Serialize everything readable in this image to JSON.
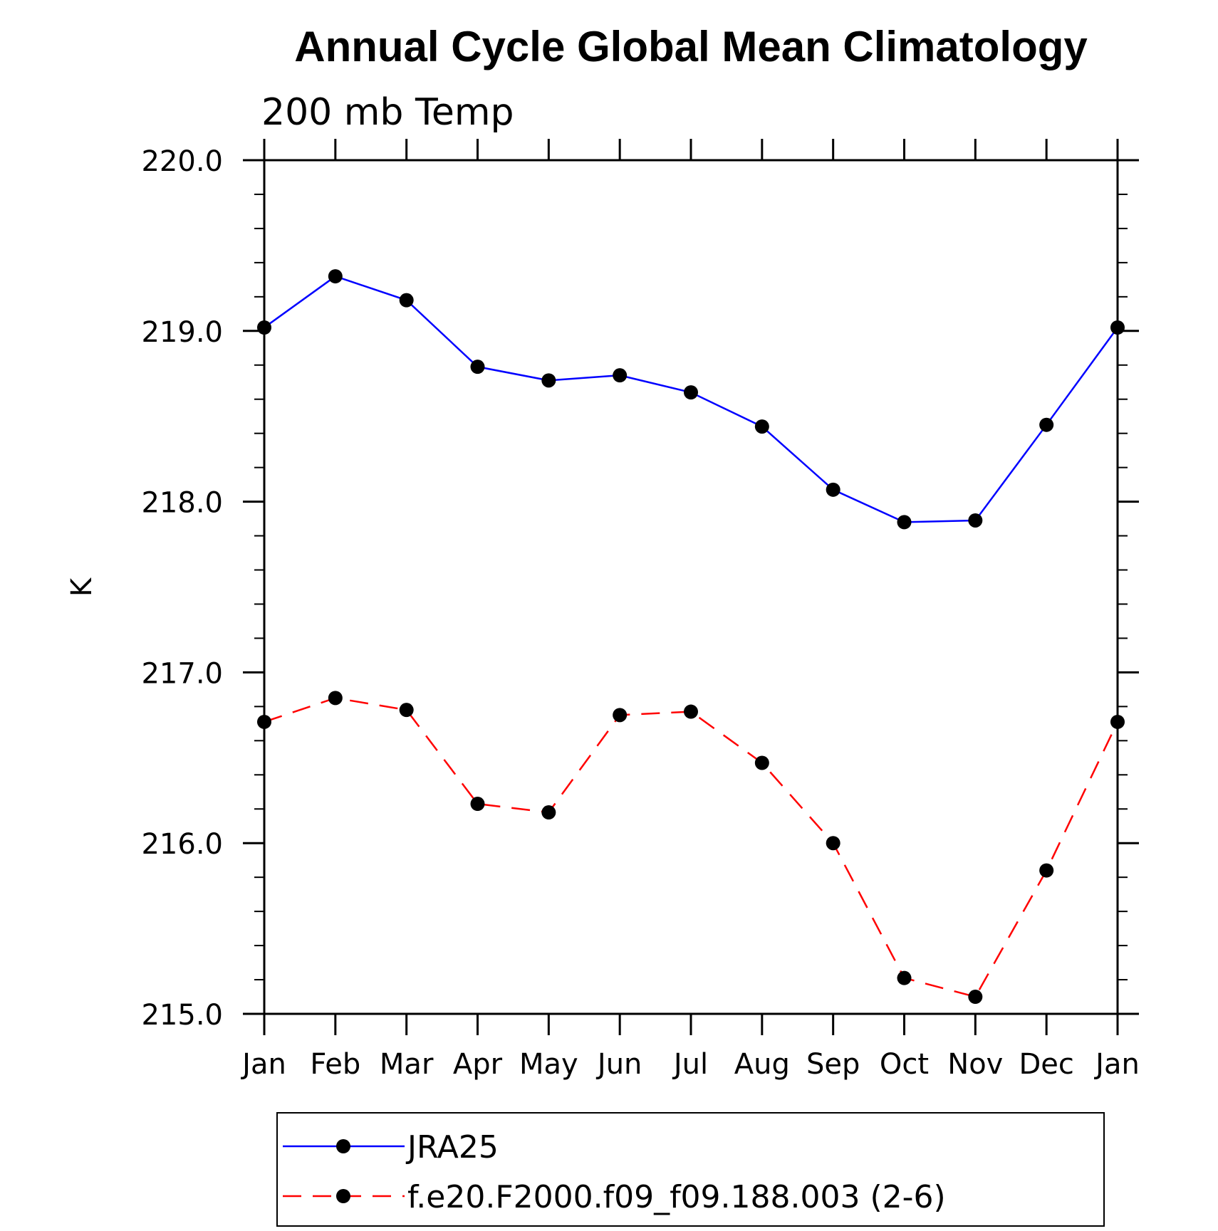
{
  "chart_data": {
    "type": "line",
    "title": "Annual Cycle Global Mean Climatology",
    "subtitle": "200 mb Temp",
    "ylabel": "K",
    "xlabel": "",
    "ylim": [
      215.0,
      220.0
    ],
    "y_major_ticks": [
      215.0,
      216.0,
      217.0,
      218.0,
      219.0,
      220.0
    ],
    "y_tick_labels": [
      "215.0",
      "216.0",
      "217.0",
      "218.0",
      "219.0",
      "220.0"
    ],
    "y_minor_step": 0.2,
    "categories": [
      "Jan",
      "Feb",
      "Mar",
      "Apr",
      "May",
      "Jun",
      "Jul",
      "Aug",
      "Sep",
      "Oct",
      "Nov",
      "Dec",
      "Jan"
    ],
    "grid": false,
    "legend_position": "bottom",
    "series": [
      {
        "name": "JRA25",
        "color": "#0000ff",
        "line_style": "solid",
        "marker": "filled-circle",
        "values": [
          219.02,
          219.32,
          219.18,
          218.79,
          218.71,
          218.74,
          218.64,
          218.44,
          218.07,
          217.88,
          217.89,
          218.45,
          219.02
        ]
      },
      {
        "name": "f.e20.F2000.f09_f09.188.003 (2-6)",
        "color": "#ff0000",
        "line_style": "dashed",
        "marker": "filled-circle",
        "values": [
          216.71,
          216.85,
          216.78,
          216.23,
          216.18,
          216.75,
          216.77,
          216.47,
          216.0,
          215.21,
          215.1,
          215.84,
          216.71
        ]
      }
    ]
  }
}
